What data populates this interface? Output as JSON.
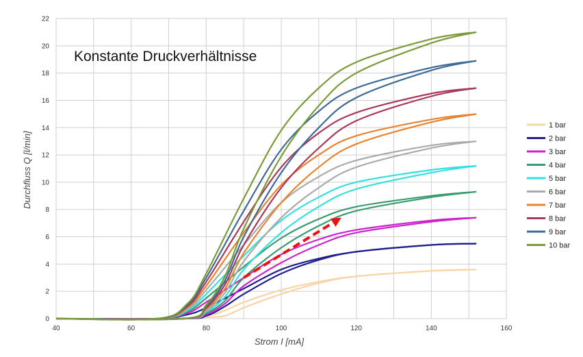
{
  "chart_data": {
    "type": "line",
    "title": "",
    "annotation": "Konstante Druckverhältnisse",
    "xlabel": "Strom I [mA]",
    "ylabel": "Durchfluss Q [l/min]",
    "xlim": [
      40,
      160
    ],
    "ylim": [
      0,
      22
    ],
    "x_ticks": [
      40,
      60,
      80,
      100,
      120,
      140,
      160
    ],
    "y_ticks": [
      0,
      2,
      4,
      6,
      8,
      10,
      12,
      14,
      16,
      18,
      20,
      22
    ],
    "grid": true,
    "legend_position": "right",
    "arrow": {
      "from": [
        90,
        3
      ],
      "to": [
        116,
        7.4
      ],
      "color": "#ee1111",
      "style": "dashed"
    },
    "series": [
      {
        "name": "1 bar",
        "color": "#f7d4a6",
        "up": [
          [
            40,
            0
          ],
          [
            70,
            0
          ],
          [
            80,
            0.2
          ],
          [
            85,
            0.6
          ],
          [
            90,
            1.2
          ],
          [
            100,
            2.1
          ],
          [
            110,
            2.7
          ],
          [
            120,
            3.1
          ],
          [
            140,
            3.5
          ],
          [
            152,
            3.6
          ]
        ],
        "down": [
          [
            40,
            0
          ],
          [
            70,
            0
          ],
          [
            80,
            0.1
          ],
          [
            85,
            0.2
          ],
          [
            90,
            0.8
          ],
          [
            100,
            1.8
          ],
          [
            110,
            2.6
          ],
          [
            120,
            3.1
          ],
          [
            140,
            3.5
          ],
          [
            152,
            3.6
          ]
        ]
      },
      {
        "name": "2 bar",
        "color": "#1f1f8c",
        "up": [
          [
            40,
            0
          ],
          [
            67,
            0
          ],
          [
            75,
            0.3
          ],
          [
            80,
            0.8
          ],
          [
            90,
            2.2
          ],
          [
            100,
            3.6
          ],
          [
            110,
            4.4
          ],
          [
            120,
            4.9
          ],
          [
            140,
            5.4
          ],
          [
            152,
            5.5
          ]
        ],
        "down": [
          [
            40,
            0
          ],
          [
            74,
            0
          ],
          [
            80,
            0.2
          ],
          [
            85,
            0.9
          ],
          [
            90,
            1.8
          ],
          [
            100,
            3.3
          ],
          [
            110,
            4.3
          ],
          [
            120,
            4.9
          ],
          [
            140,
            5.4
          ],
          [
            152,
            5.5
          ]
        ]
      },
      {
        "name": "3 bar",
        "color": "#cc22cc",
        "up": [
          [
            40,
            0
          ],
          [
            67,
            0
          ],
          [
            75,
            0.4
          ],
          [
            80,
            1.2
          ],
          [
            90,
            3.0
          ],
          [
            100,
            4.7
          ],
          [
            110,
            5.8
          ],
          [
            120,
            6.5
          ],
          [
            140,
            7.2
          ],
          [
            152,
            7.4
          ]
        ],
        "down": [
          [
            40,
            0
          ],
          [
            74,
            0
          ],
          [
            80,
            0.3
          ],
          [
            85,
            1.1
          ],
          [
            90,
            2.4
          ],
          [
            100,
            4.1
          ],
          [
            110,
            5.4
          ],
          [
            120,
            6.3
          ],
          [
            140,
            7.1
          ],
          [
            152,
            7.4
          ]
        ]
      },
      {
        "name": "4 bar",
        "color": "#3a9a70",
        "up": [
          [
            40,
            0
          ],
          [
            67,
            0
          ],
          [
            75,
            0.5
          ],
          [
            80,
            1.5
          ],
          [
            90,
            3.8
          ],
          [
            100,
            5.9
          ],
          [
            110,
            7.3
          ],
          [
            120,
            8.2
          ],
          [
            140,
            9.0
          ],
          [
            152,
            9.3
          ]
        ],
        "down": [
          [
            40,
            0
          ],
          [
            74,
            0
          ],
          [
            80,
            0.4
          ],
          [
            85,
            1.3
          ],
          [
            90,
            3.0
          ],
          [
            100,
            5.2
          ],
          [
            110,
            6.8
          ],
          [
            120,
            7.9
          ],
          [
            140,
            8.9
          ],
          [
            152,
            9.3
          ]
        ]
      },
      {
        "name": "5 bar",
        "color": "#33e0e0",
        "up": [
          [
            40,
            0
          ],
          [
            67,
            0
          ],
          [
            75,
            0.6
          ],
          [
            80,
            1.8
          ],
          [
            90,
            4.6
          ],
          [
            100,
            7.2
          ],
          [
            110,
            8.9
          ],
          [
            120,
            10.0
          ],
          [
            140,
            10.9
          ],
          [
            152,
            11.2
          ]
        ],
        "down": [
          [
            40,
            0
          ],
          [
            74,
            0
          ],
          [
            80,
            0.5
          ],
          [
            85,
            1.6
          ],
          [
            90,
            3.6
          ],
          [
            100,
            6.3
          ],
          [
            110,
            8.2
          ],
          [
            120,
            9.5
          ],
          [
            140,
            10.7
          ],
          [
            152,
            11.2
          ]
        ]
      },
      {
        "name": "6 bar",
        "color": "#aaaaaa",
        "up": [
          [
            40,
            0
          ],
          [
            67,
            0
          ],
          [
            75,
            0.7
          ],
          [
            80,
            2.1
          ],
          [
            90,
            5.4
          ],
          [
            100,
            8.5
          ],
          [
            110,
            10.4
          ],
          [
            120,
            11.6
          ],
          [
            140,
            12.7
          ],
          [
            152,
            13.0
          ]
        ],
        "down": [
          [
            40,
            0
          ],
          [
            74,
            0
          ],
          [
            80,
            0.6
          ],
          [
            85,
            1.9
          ],
          [
            90,
            4.2
          ],
          [
            100,
            7.4
          ],
          [
            110,
            9.6
          ],
          [
            120,
            11.1
          ],
          [
            140,
            12.5
          ],
          [
            152,
            13.0
          ]
        ]
      },
      {
        "name": "7 bar",
        "color": "#e8822e",
        "up": [
          [
            40,
            0
          ],
          [
            67,
            0
          ],
          [
            75,
            0.8
          ],
          [
            80,
            2.4
          ],
          [
            90,
            6.3
          ],
          [
            100,
            9.8
          ],
          [
            110,
            12.0
          ],
          [
            120,
            13.4
          ],
          [
            140,
            14.6
          ],
          [
            152,
            15.0
          ]
        ],
        "down": [
          [
            40,
            0
          ],
          [
            74,
            0
          ],
          [
            80,
            0.7
          ],
          [
            85,
            2.2
          ],
          [
            90,
            4.8
          ],
          [
            100,
            8.5
          ],
          [
            110,
            11.1
          ],
          [
            120,
            12.8
          ],
          [
            140,
            14.4
          ],
          [
            152,
            15.0
          ]
        ]
      },
      {
        "name": "8 bar",
        "color": "#a8385a",
        "up": [
          [
            40,
            0
          ],
          [
            67,
            0
          ],
          [
            75,
            0.9
          ],
          [
            80,
            2.7
          ],
          [
            90,
            7.1
          ],
          [
            100,
            11.1
          ],
          [
            110,
            13.6
          ],
          [
            120,
            15.1
          ],
          [
            140,
            16.5
          ],
          [
            152,
            16.9
          ]
        ],
        "down": [
          [
            40,
            0
          ],
          [
            74,
            0
          ],
          [
            80,
            0.8
          ],
          [
            85,
            2.5
          ],
          [
            90,
            5.4
          ],
          [
            100,
            9.6
          ],
          [
            110,
            12.5
          ],
          [
            120,
            14.5
          ],
          [
            140,
            16.3
          ],
          [
            152,
            16.9
          ]
        ]
      },
      {
        "name": "9 bar",
        "color": "#3d6a94",
        "up": [
          [
            40,
            0
          ],
          [
            67,
            0
          ],
          [
            75,
            1.0
          ],
          [
            80,
            3.0
          ],
          [
            90,
            7.9
          ],
          [
            100,
            12.4
          ],
          [
            110,
            15.2
          ],
          [
            120,
            16.9
          ],
          [
            140,
            18.4
          ],
          [
            152,
            18.9
          ]
        ],
        "down": [
          [
            40,
            0
          ],
          [
            74,
            0
          ],
          [
            80,
            0.9
          ],
          [
            85,
            2.8
          ],
          [
            90,
            6.0
          ],
          [
            100,
            10.7
          ],
          [
            110,
            14.0
          ],
          [
            120,
            16.2
          ],
          [
            140,
            18.2
          ],
          [
            152,
            18.9
          ]
        ]
      },
      {
        "name": "10 bar",
        "color": "#7a9a3a",
        "up": [
          [
            40,
            0
          ],
          [
            67,
            0
          ],
          [
            75,
            1.1
          ],
          [
            80,
            3.3
          ],
          [
            90,
            8.8
          ],
          [
            100,
            13.8
          ],
          [
            110,
            16.9
          ],
          [
            120,
            18.8
          ],
          [
            140,
            20.5
          ],
          [
            152,
            21.0
          ]
        ],
        "down": [
          [
            40,
            0
          ],
          [
            74,
            0
          ],
          [
            80,
            1.0
          ],
          [
            85,
            3.1
          ],
          [
            90,
            6.6
          ],
          [
            100,
            11.9
          ],
          [
            110,
            15.6
          ],
          [
            120,
            18.0
          ],
          [
            140,
            20.2
          ],
          [
            152,
            21.0
          ]
        ]
      }
    ]
  }
}
